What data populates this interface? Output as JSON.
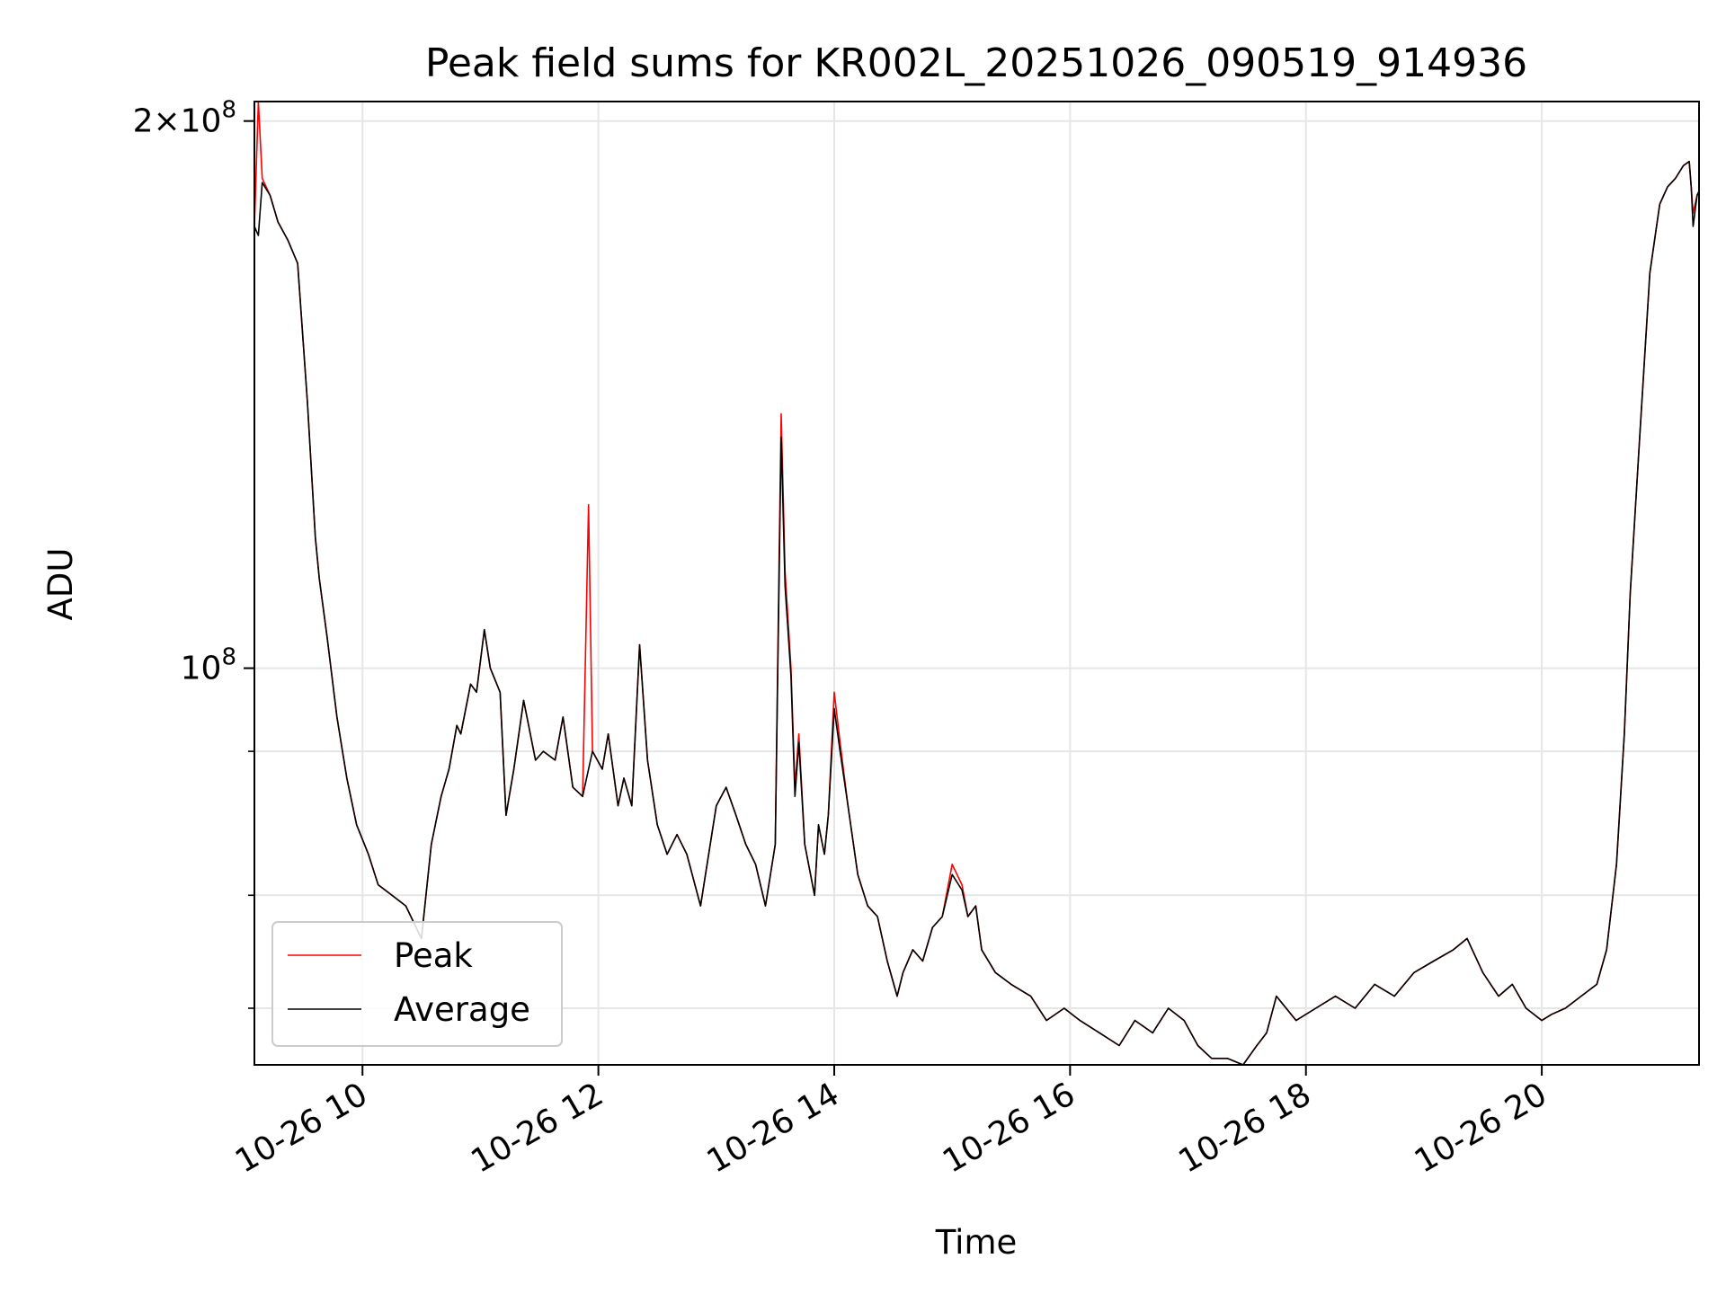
{
  "chart_data": {
    "type": "line",
    "title": "Peak field sums for KR002L_20251026_090519_914936",
    "xlabel": "Time",
    "ylabel": "ADU",
    "yscale": "log",
    "xlim": [
      "2025-10-26 09:05",
      "2025-10-26 21:20"
    ],
    "ylim": [
      60500000,
      205000000
    ],
    "grid": true,
    "legend_position": "lower-left",
    "x_ticks": [
      {
        "t": "2025-10-26 10:00",
        "label": "10-26 10"
      },
      {
        "t": "2025-10-26 12:00",
        "label": "10-26 12"
      },
      {
        "t": "2025-10-26 14:00",
        "label": "10-26 14"
      },
      {
        "t": "2025-10-26 16:00",
        "label": "10-26 16"
      },
      {
        "t": "2025-10-26 18:00",
        "label": "10-26 18"
      },
      {
        "t": "2025-10-26 20:00",
        "label": "10-26 20"
      }
    ],
    "y_ticks_major": [
      {
        "value": 100000000,
        "base": "10",
        "exp": "8",
        "coef": ""
      },
      {
        "value": 200000000,
        "base": "10",
        "exp": "8",
        "coef": "2×"
      }
    ],
    "y_ticks_minor": [
      65000000,
      75000000,
      90000000
    ],
    "x": [
      "09:05",
      "09:07",
      "09:09",
      "09:13",
      "09:17",
      "09:22",
      "09:27",
      "09:32",
      "09:36",
      "09:38",
      "09:42",
      "09:47",
      "09:52",
      "09:57",
      "10:03",
      "10:08",
      "10:15",
      "10:22",
      "10:30",
      "10:35",
      "10:40",
      "10:44",
      "10:48",
      "10:50",
      "10:55",
      "10:58",
      "11:02",
      "11:05",
      "11:10",
      "11:13",
      "11:17",
      "11:22",
      "11:28",
      "11:32",
      "11:38",
      "11:42",
      "11:47",
      "11:52",
      "11:55",
      "11:57",
      "12:02",
      "12:05",
      "12:10",
      "12:13",
      "12:17",
      "12:21",
      "12:25",
      "12:30",
      "12:35",
      "12:40",
      "12:45",
      "12:52",
      "13:00",
      "13:05",
      "13:10",
      "13:15",
      "13:20",
      "13:25",
      "13:30",
      "13:32",
      "13:33",
      "13:35",
      "13:38",
      "13:40",
      "13:42",
      "13:45",
      "13:50",
      "13:52",
      "13:55",
      "13:57",
      "14:00",
      "14:03",
      "14:07",
      "14:12",
      "14:17",
      "14:22",
      "14:27",
      "14:32",
      "14:35",
      "14:40",
      "14:45",
      "14:50",
      "14:55",
      "15:00",
      "15:05",
      "15:08",
      "15:12",
      "15:15",
      "15:22",
      "15:30",
      "15:40",
      "15:48",
      "15:57",
      "16:05",
      "16:15",
      "16:25",
      "16:33",
      "16:42",
      "16:50",
      "16:58",
      "17:05",
      "17:12",
      "17:20",
      "17:28",
      "17:35",
      "17:40",
      "17:45",
      "17:55",
      "18:05",
      "18:15",
      "18:25",
      "18:35",
      "18:45",
      "18:55",
      "19:05",
      "19:15",
      "19:22",
      "19:30",
      "19:38",
      "19:45",
      "19:52",
      "20:00",
      "20:05",
      "20:12",
      "20:20",
      "20:28",
      "20:33",
      "20:38",
      "20:42",
      "20:45",
      "20:50",
      "20:55",
      "21:00",
      "21:04",
      "21:08",
      "21:12",
      "21:15",
      "21:16",
      "21:17",
      "21:19",
      "21:20"
    ],
    "series": [
      {
        "name": "Peak",
        "color": "#ff0000",
        "values": [
          175000000,
          205000000,
          186000000,
          182000000,
          176000000,
          172000000,
          167000000,
          140000000,
          118000000,
          112000000,
          104000000,
          94000000,
          87000000,
          82000000,
          79000000,
          76000000,
          75000000,
          74000000,
          71000000,
          80000000,
          85000000,
          88000000,
          93000000,
          92000000,
          98000000,
          97000000,
          105000000,
          100000000,
          97000000,
          83000000,
          88000000,
          96000000,
          89000000,
          90000000,
          89000000,
          94000000,
          86000000,
          85000000,
          123000000,
          90000000,
          88000000,
          92000000,
          84000000,
          87000000,
          84000000,
          103000000,
          89000000,
          82000000,
          79000000,
          81000000,
          79000000,
          74000000,
          84000000,
          86000000,
          83000000,
          80000000,
          78000000,
          74000000,
          80000000,
          116000000,
          138000000,
          113000000,
          100000000,
          86000000,
          92000000,
          80000000,
          75000000,
          82000000,
          79000000,
          83000000,
          97000000,
          91000000,
          84000000,
          77000000,
          74000000,
          73000000,
          69000000,
          66000000,
          68000000,
          70000000,
          69000000,
          72000000,
          73000000,
          78000000,
          76000000,
          73000000,
          74000000,
          70000000,
          68000000,
          67000000,
          66000000,
          64000000,
          65000000,
          64000000,
          63000000,
          62000000,
          64000000,
          63000000,
          65000000,
          64000000,
          62000000,
          61000000,
          61000000,
          60500000,
          62000000,
          63000000,
          66000000,
          64000000,
          65000000,
          66000000,
          65000000,
          67000000,
          66000000,
          68000000,
          69000000,
          70000000,
          71000000,
          68000000,
          66000000,
          67000000,
          65000000,
          64000000,
          64500000,
          65000000,
          66000000,
          67000000,
          70000000,
          78000000,
          92000000,
          110000000,
          135000000,
          165000000,
          180000000,
          184000000,
          186000000,
          189000000,
          190000000,
          184000000,
          178000000,
          182000000,
          183000000
        ]
      },
      {
        "name": "Average",
        "color": "#000000",
        "values": [
          175000000,
          173000000,
          185000000,
          182000000,
          176000000,
          172000000,
          167000000,
          140000000,
          118000000,
          112000000,
          104000000,
          94000000,
          87000000,
          82000000,
          79000000,
          76000000,
          75000000,
          74000000,
          71000000,
          80000000,
          85000000,
          88000000,
          93000000,
          92000000,
          98000000,
          97000000,
          105000000,
          100000000,
          97000000,
          83000000,
          88000000,
          96000000,
          89000000,
          90000000,
          89000000,
          94000000,
          86000000,
          85000000,
          88000000,
          90000000,
          88000000,
          92000000,
          84000000,
          87000000,
          84000000,
          103000000,
          89000000,
          82000000,
          79000000,
          81000000,
          79000000,
          74000000,
          84000000,
          86000000,
          83000000,
          80000000,
          78000000,
          74000000,
          80000000,
          113000000,
          134000000,
          111000000,
          99000000,
          85000000,
          91000000,
          80000000,
          75000000,
          82000000,
          79000000,
          83000000,
          95000000,
          90000000,
          84000000,
          77000000,
          74000000,
          73000000,
          69000000,
          66000000,
          68000000,
          70000000,
          69000000,
          72000000,
          73000000,
          77000000,
          75500000,
          73000000,
          74000000,
          70000000,
          68000000,
          67000000,
          66000000,
          64000000,
          65000000,
          64000000,
          63000000,
          62000000,
          64000000,
          63000000,
          65000000,
          64000000,
          62000000,
          61000000,
          61000000,
          60500000,
          62000000,
          63000000,
          66000000,
          64000000,
          65000000,
          66000000,
          65000000,
          67000000,
          66000000,
          68000000,
          69000000,
          70000000,
          71000000,
          68000000,
          66000000,
          67000000,
          65000000,
          64000000,
          64500000,
          65000000,
          66000000,
          67000000,
          70000000,
          78000000,
          92000000,
          110000000,
          135000000,
          165000000,
          180000000,
          184000000,
          186000000,
          189000000,
          190000000,
          184000000,
          175000000,
          182000000,
          183000000
        ]
      }
    ]
  }
}
